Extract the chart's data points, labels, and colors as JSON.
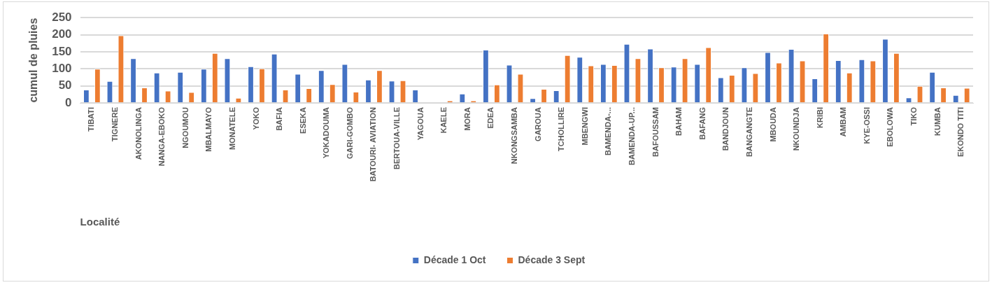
{
  "chart_data": {
    "type": "bar",
    "xlabel": "Localité",
    "ylabel": "cumul de pluies",
    "categories": [
      "TIBATI",
      "TIGNERE",
      "AKONOLINGA",
      "NANGA-EBOKO",
      "NGOUMOU",
      "MBALMAYO",
      "MONATELE",
      "YOKO",
      "BAFIA",
      "ESEKA",
      "YOKADOUMA",
      "GARI-GOMBO",
      "BATOURI- AVIATION",
      "BERTOUA-VILLE",
      "YAGOUA",
      "KAELE",
      "MORA",
      "EDEA",
      "NKONGSAMBA",
      "GAROUA",
      "TCHOLLIRE",
      "MBENGWI",
      "BAMENDA-...",
      "BAMENDA-UP...",
      "BAFOUSSAM",
      "BAHAM",
      "BAFANG",
      "BANDJOUN",
      "BANGANGTE",
      "MBOUDA",
      "NKOUNDJA",
      "KRIBI",
      "AMBAM",
      "KYE-OSSI",
      "EBOLOWA",
      "TIKO",
      "KUMBA",
      "EKONDO TITI"
    ],
    "series": [
      {
        "name": "Décade 1 Oct",
        "color": "#4472c4",
        "values": [
          39,
          64,
          131,
          89,
          91,
          100,
          131,
          107,
          144,
          85,
          96,
          114,
          68,
          65,
          39,
          0,
          27,
          156,
          112,
          14,
          37,
          135,
          114,
          173,
          159,
          106,
          114,
          75,
          104,
          149,
          158,
          72,
          125,
          128,
          188,
          16,
          91,
          23
        ]
      },
      {
        "name": "Décade 3 Sept",
        "color": "#ed7d31",
        "values": [
          100,
          198,
          45,
          36,
          32,
          146,
          15,
          101,
          39,
          43,
          55,
          33,
          96,
          66,
          0,
          7,
          7,
          54,
          85,
          41,
          140,
          110,
          111,
          131,
          104,
          131,
          163,
          82,
          87,
          118,
          124,
          203,
          89,
          124,
          146,
          50,
          45,
          44
        ]
      }
    ],
    "ylim": [
      0,
      250
    ],
    "yticks": [
      0,
      50,
      100,
      150,
      200,
      250
    ],
    "grid": "y",
    "legend": "bottom"
  }
}
